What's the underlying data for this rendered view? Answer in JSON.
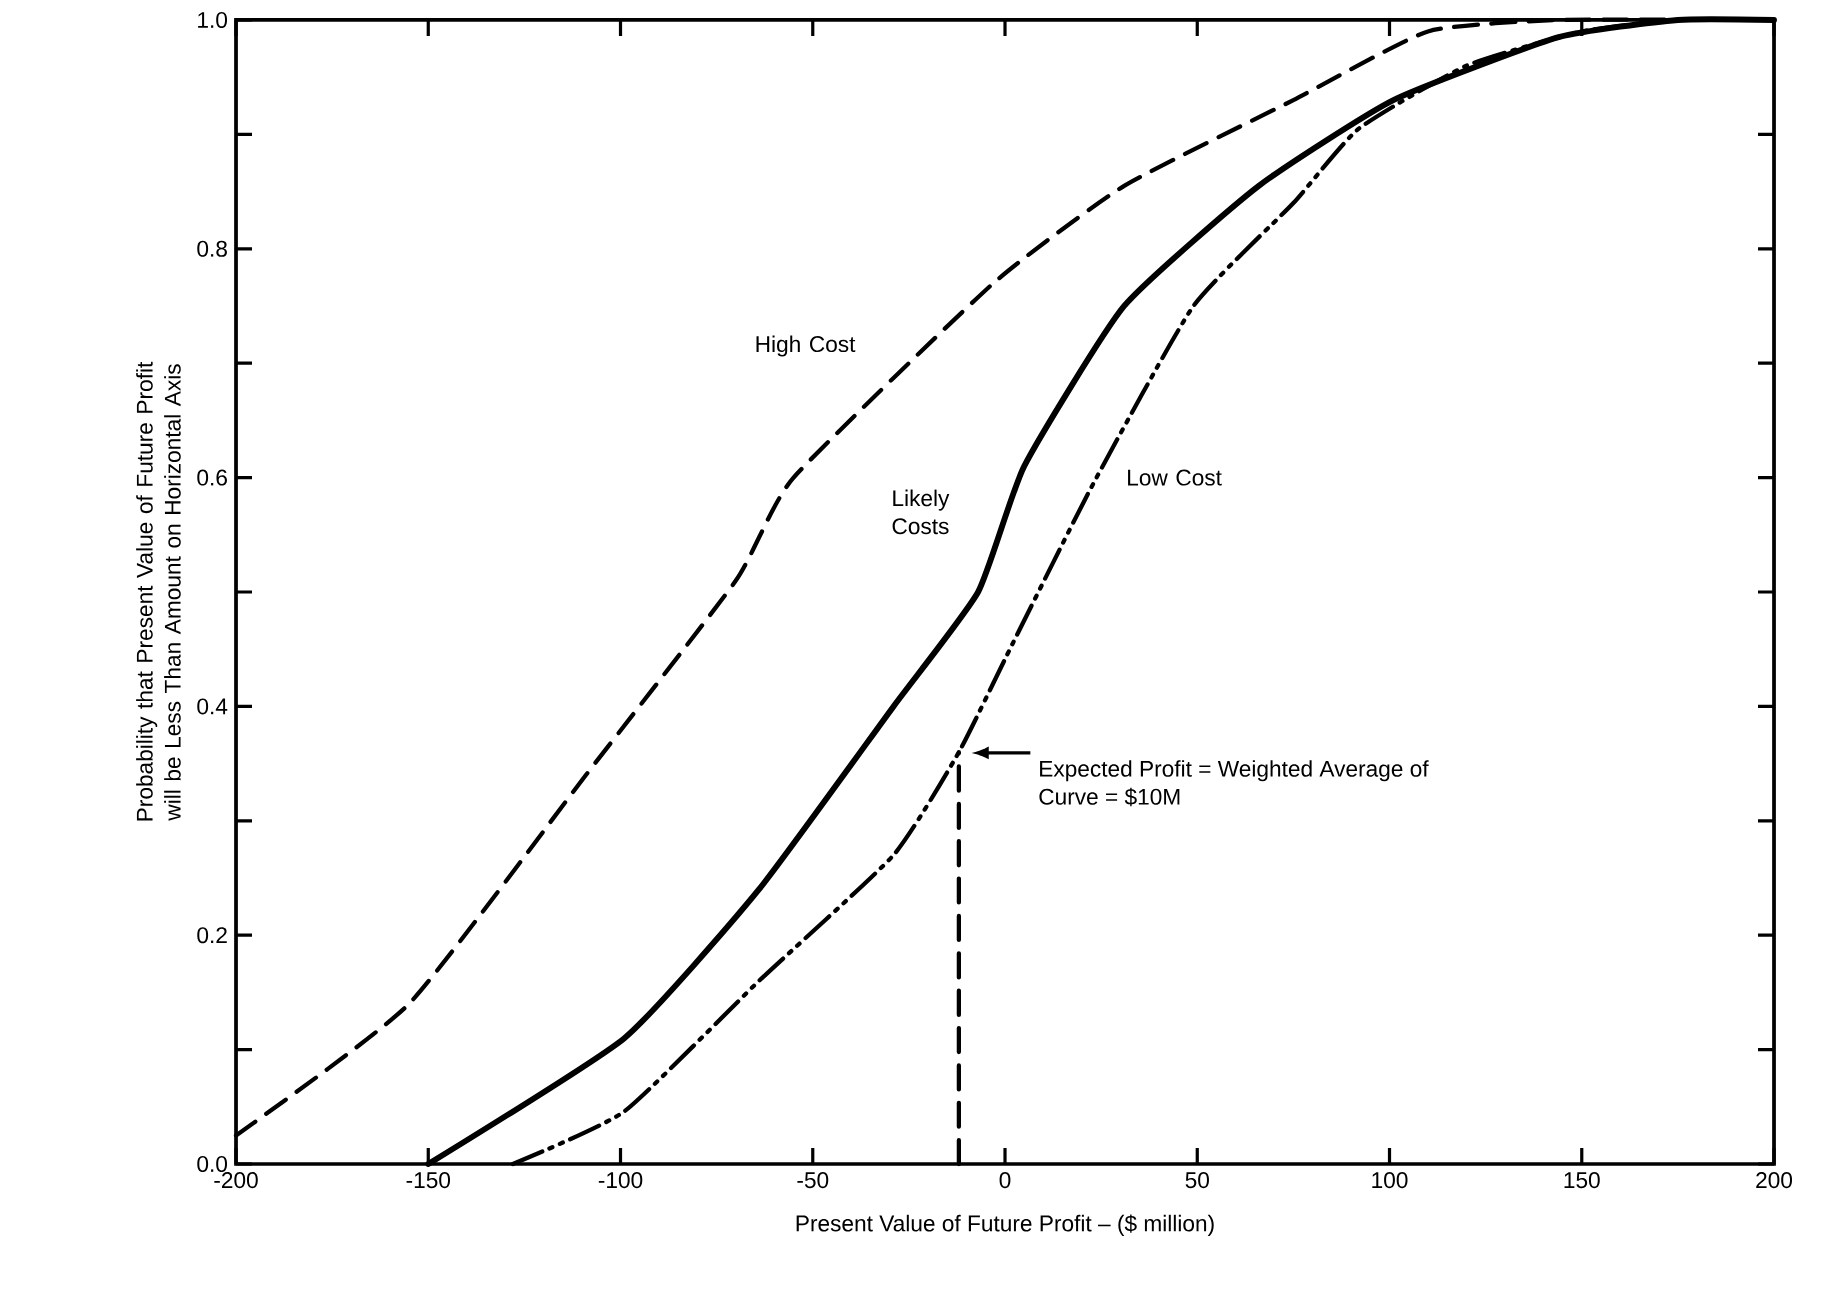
{
  "chart_data": {
    "type": "line",
    "xlabel": "Present Value of Future Profit – ($ million)",
    "ylabel": "Probability that Present Value of Future Profit will be Less Than Amount on Horizontal Axis",
    "xlim": [
      -200,
      200
    ],
    "ylim": [
      0,
      1
    ],
    "xticks": [
      -200,
      -150,
      -100,
      -50,
      0,
      50,
      100,
      150,
      200
    ],
    "yticks": [
      {
        "value": 0,
        "label": "0.0"
      },
      {
        "value": 0.1,
        "label": null
      },
      0.2,
      {
        "value": 0.3,
        "label": null
      },
      0.4,
      {
        "value": 0.5,
        "label": null
      },
      0.6,
      {
        "value": 0.7,
        "label": null
      },
      0.8,
      {
        "value": 0.9,
        "label": null
      },
      {
        "value": 1,
        "label": "1.0"
      }
    ],
    "grid": false,
    "marker": "none",
    "series": [
      {
        "name": "High Cost",
        "color": "#000000",
        "line_style": "dashed",
        "x": [
          -200,
          -155,
          -109,
          -70,
          -55,
          -3,
          31,
          75,
          110,
          144,
          200
        ],
        "values": [
          0.025,
          0.14,
          0.34,
          0.51,
          0.6,
          0.77,
          0.855,
          0.93,
          0.99,
          1.0,
          1.0
        ]
      },
      {
        "name": "Likely Costs",
        "color": "#000000",
        "line_style": "solid",
        "x": [
          -150,
          -99,
          -64,
          -29,
          -7,
          5,
          31,
          66,
          101,
          144,
          175,
          200
        ],
        "values": [
          0,
          0.11,
          0.24,
          0.4,
          0.5,
          0.61,
          0.75,
          0.855,
          0.93,
          0.985,
          1.0,
          1.0
        ]
      },
      {
        "name": "Low Cost",
        "color": "#000000",
        "line_style": "dashdotdot",
        "x": [
          -128,
          -99,
          -64,
          -29,
          -12,
          2,
          23,
          49,
          75,
          92,
          120,
          150,
          175,
          200
        ],
        "values": [
          0,
          0.046,
          0.16,
          0.27,
          0.36,
          0.455,
          0.595,
          0.75,
          0.84,
          0.905,
          0.96,
          0.99,
          1.0,
          1.0
        ]
      },
      {
        "color": "#000000",
        "line_style": "dashed",
        "x": [
          -12,
          -12
        ],
        "values": [
          0,
          0.36
        ]
      }
    ],
    "annotations": [
      "Expected Profit = Weighted Average of Curve = $10M"
    ]
  }
}
